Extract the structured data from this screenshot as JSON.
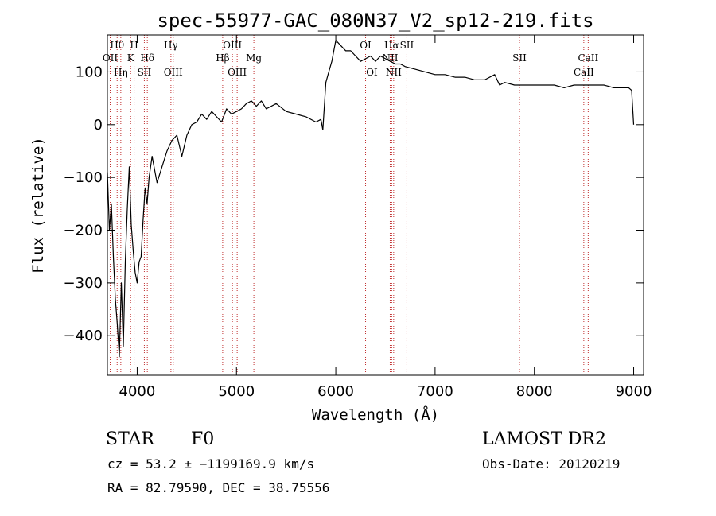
{
  "chart_data": {
    "type": "line",
    "title": "spec-55977-GAC_080N37_V2_sp12-219.fits",
    "xlabel": "Wavelength (Å)",
    "ylabel": "Flux (relative)",
    "xlim": [
      3700,
      9100
    ],
    "ylim": [
      -475,
      170
    ],
    "x_ticks": [
      4000,
      5000,
      6000,
      7000,
      8000,
      9000
    ],
    "y_ticks": [
      -400,
      -300,
      -200,
      -100,
      0,
      100
    ],
    "grid": false,
    "series": [
      {
        "x": [
          3700,
          3720,
          3740,
          3760,
          3780,
          3800,
          3820,
          3840,
          3860,
          3880,
          3900,
          3920,
          3940,
          3960,
          3980,
          4000,
          4020,
          4040,
          4060,
          4080,
          4100,
          4120,
          4150,
          4200,
          4250,
          4300,
          4350,
          4400,
          4450,
          4500,
          4550,
          4600,
          4650,
          4700,
          4750,
          4800,
          4850,
          4900,
          4950,
          5000,
          5050,
          5100,
          5150,
          5200,
          5250,
          5300,
          5400,
          5500,
          5600,
          5700,
          5800,
          5850,
          5870,
          5900,
          5930,
          5960,
          6000,
          6050,
          6100,
          6150,
          6200,
          6250,
          6300,
          6350,
          6400,
          6450,
          6500,
          6550,
          6600,
          6650,
          6700,
          6800,
          6900,
          7000,
          7100,
          7200,
          7300,
          7400,
          7500,
          7600,
          7650,
          7700,
          7800,
          7900,
          8000,
          8100,
          8200,
          8300,
          8400,
          8500,
          8600,
          8700,
          8800,
          8900,
          8950,
          8980,
          9000
        ],
        "y": [
          -90,
          -200,
          -150,
          -250,
          -330,
          -380,
          -440,
          -300,
          -420,
          -260,
          -160,
          -80,
          -190,
          -240,
          -280,
          -300,
          -260,
          -250,
          -180,
          -120,
          -150,
          -100,
          -60,
          -110,
          -80,
          -50,
          -30,
          -20,
          -60,
          -20,
          0,
          5,
          20,
          10,
          25,
          15,
          5,
          30,
          20,
          25,
          30,
          40,
          45,
          35,
          45,
          30,
          40,
          25,
          20,
          15,
          5,
          10,
          -10,
          80,
          100,
          120,
          160,
          150,
          140,
          140,
          130,
          120,
          125,
          130,
          120,
          130,
          125,
          120,
          115,
          115,
          110,
          105,
          100,
          95,
          95,
          90,
          90,
          85,
          85,
          95,
          75,
          80,
          75,
          75,
          75,
          75,
          75,
          70,
          75,
          75,
          75,
          75,
          70,
          70,
          70,
          65,
          0
        ]
      }
    ],
    "line_marks": [
      {
        "wl": 3728,
        "label": "OII",
        "row": 2
      },
      {
        "wl": 3798,
        "label": "Hθ",
        "row": 1
      },
      {
        "wl": 3835,
        "label": "Hη",
        "row": 3
      },
      {
        "wl": 3934,
        "label": "K",
        "row": 2
      },
      {
        "wl": 3969,
        "label": "H",
        "row": 1
      },
      {
        "wl": 4072,
        "label": "SII",
        "row": 3
      },
      {
        "wl": 4102,
        "label": "Hδ",
        "row": 2
      },
      {
        "wl": 4340,
        "label": "Hγ",
        "row": 1
      },
      {
        "wl": 4363,
        "label": "OIII",
        "row": 3
      },
      {
        "wl": 4861,
        "label": "Hβ",
        "row": 2
      },
      {
        "wl": 4959,
        "label": "OIII",
        "row": 1
      },
      {
        "wl": 5007,
        "label": "OIII",
        "row": 3
      },
      {
        "wl": 5175,
        "label": "Mg",
        "row": 2
      },
      {
        "wl": 6300,
        "label": "OI",
        "row": 1
      },
      {
        "wl": 6364,
        "label": "OI",
        "row": 3
      },
      {
        "wl": 6548,
        "label": "NII",
        "row": 2
      },
      {
        "wl": 6563,
        "label": "Hα",
        "row": 1
      },
      {
        "wl": 6583,
        "label": "NII",
        "row": 3
      },
      {
        "wl": 6716,
        "label": "SII",
        "row": 1
      },
      {
        "wl": 7850,
        "label": "SII",
        "row": 2
      },
      {
        "wl": 8498,
        "label": "CaII",
        "row": 3
      },
      {
        "wl": 8542,
        "label": "CaII",
        "row": 2
      }
    ]
  },
  "info": {
    "class": "STAR",
    "subclass": "F0",
    "survey": "LAMOST DR2",
    "cz": "cz = 53.2 ± −1199169.9 km/s",
    "obs_date": "Obs-Date: 20120219",
    "radec": "RA =  82.79590, DEC =  38.75556"
  }
}
